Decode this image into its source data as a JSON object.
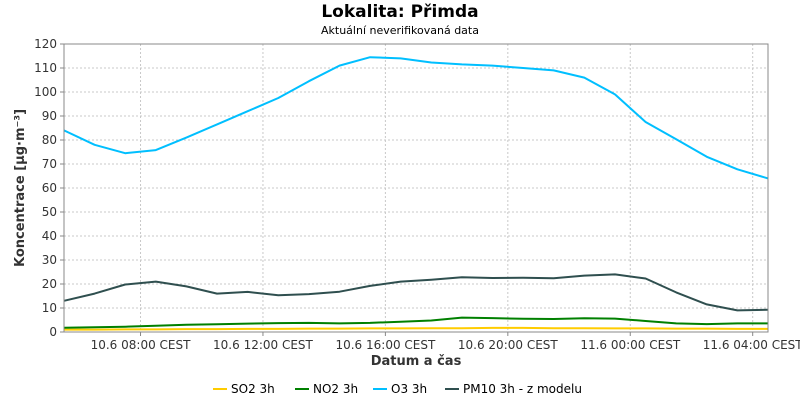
{
  "chart_data": {
    "type": "line",
    "title": "Lokalita: Přimda",
    "subtitle": "Aktuální neverifikovaná data",
    "xlabel": "Datum a čas",
    "ylabel": "Koncentrace [µg·m⁻³]",
    "ylim": [
      0,
      120
    ],
    "yticks": [
      0,
      10,
      20,
      30,
      40,
      50,
      60,
      70,
      80,
      90,
      100,
      110,
      120
    ],
    "x": [
      5.5,
      6.5,
      7.5,
      8.5,
      9.5,
      10.5,
      11.5,
      12.5,
      13.5,
      14.5,
      15.5,
      16.5,
      17.5,
      18.5,
      19.5,
      20.5,
      21.5,
      22.5,
      23.5,
      24.5,
      25.5,
      26.5,
      27.5,
      28.5
    ],
    "xlim": [
      5.5,
      28.5
    ],
    "xticks": [
      {
        "value": 8,
        "label": "10.6 08:00 CEST"
      },
      {
        "value": 12,
        "label": "10.6 12:00 CEST"
      },
      {
        "value": 16,
        "label": "10.6 16:00 CEST"
      },
      {
        "value": 20,
        "label": "10.6 20:00 CEST"
      },
      {
        "value": 24,
        "label": "11.6 00:00 CEST"
      },
      {
        "value": 28,
        "label": "11.6 04:00 CEST"
      }
    ],
    "grid": true,
    "legend_position": "bottom",
    "series": [
      {
        "name": "SO2 3h",
        "color": "#ffcc00",
        "values": [
          1.0,
          1.0,
          1.1,
          1.1,
          1.2,
          1.2,
          1.3,
          1.3,
          1.4,
          1.4,
          1.5,
          1.5,
          1.6,
          1.6,
          1.7,
          1.7,
          1.6,
          1.6,
          1.5,
          1.5,
          1.4,
          1.4,
          1.3,
          1.3
        ]
      },
      {
        "name": "NO2 3h",
        "color": "#008000",
        "values": [
          1.8,
          2.0,
          2.2,
          2.6,
          3.0,
          3.2,
          3.5,
          3.7,
          3.8,
          3.6,
          3.8,
          4.3,
          4.8,
          6.0,
          5.8,
          5.5,
          5.4,
          5.7,
          5.6,
          4.6,
          3.6,
          3.3,
          3.6,
          3.6
        ]
      },
      {
        "name": "O3 3h",
        "color": "#00bfff",
        "values": [
          84.0,
          78.0,
          74.5,
          75.8,
          81.0,
          86.5,
          92.0,
          97.5,
          104.5,
          111.0,
          114.5,
          114.0,
          112.3,
          111.5,
          111.0,
          110.0,
          109.0,
          106.0,
          99.0,
          87.5,
          80.3,
          73.0,
          67.8,
          64.0
        ]
      },
      {
        "name": "PM10 3h - z modelu",
        "color": "#2f4f4f",
        "values": [
          13.0,
          16.0,
          19.8,
          21.0,
          19.0,
          16.0,
          16.7,
          15.3,
          15.8,
          16.8,
          19.2,
          21.0,
          21.8,
          22.8,
          22.5,
          22.6,
          22.4,
          23.5,
          24.0,
          22.3,
          16.5,
          11.5,
          9.0,
          9.3
        ]
      }
    ]
  }
}
